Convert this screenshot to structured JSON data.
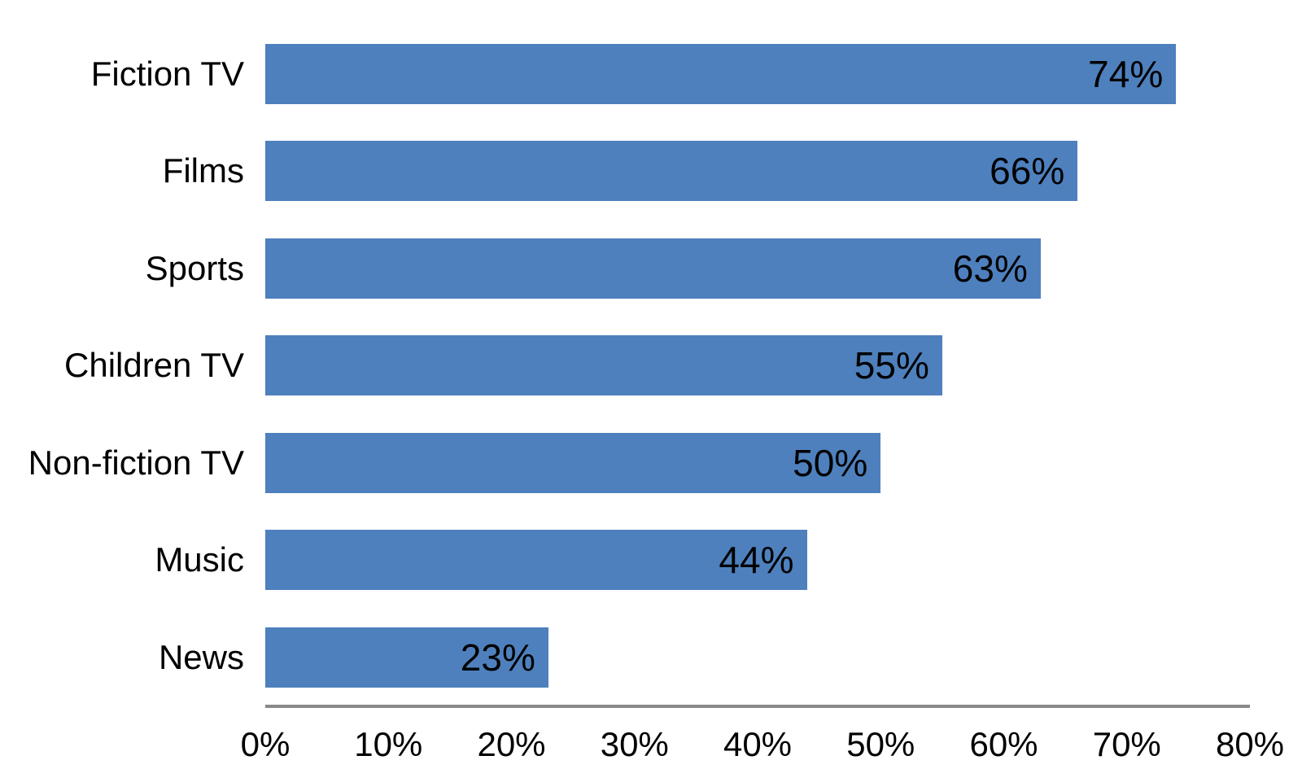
{
  "chart_data": {
    "type": "bar",
    "orientation": "horizontal",
    "title": "",
    "xlabel": "",
    "ylabel": "",
    "categories": [
      "Fiction TV",
      "Films",
      "Sports",
      "Children TV",
      "Non-fiction TV",
      "Music",
      "News"
    ],
    "values": [
      74,
      66,
      63,
      55,
      50,
      44,
      23
    ],
    "value_labels": [
      "74%",
      "66%",
      "63%",
      "55%",
      "50%",
      "44%",
      "23%"
    ],
    "xlim": [
      0,
      80
    ],
    "x_ticks": [
      0,
      10,
      20,
      30,
      40,
      50,
      60,
      70,
      80
    ],
    "x_tick_labels": [
      "0%",
      "10%",
      "20%",
      "30%",
      "40%",
      "50%",
      "60%",
      "70%",
      "80%"
    ],
    "grid": false,
    "legend": false,
    "value_label_position": "inside-end",
    "colors": {
      "bar_fill": "#4E80BD",
      "axis_line": "#898989",
      "text": "#000000",
      "background": "#FFFFFF"
    }
  }
}
